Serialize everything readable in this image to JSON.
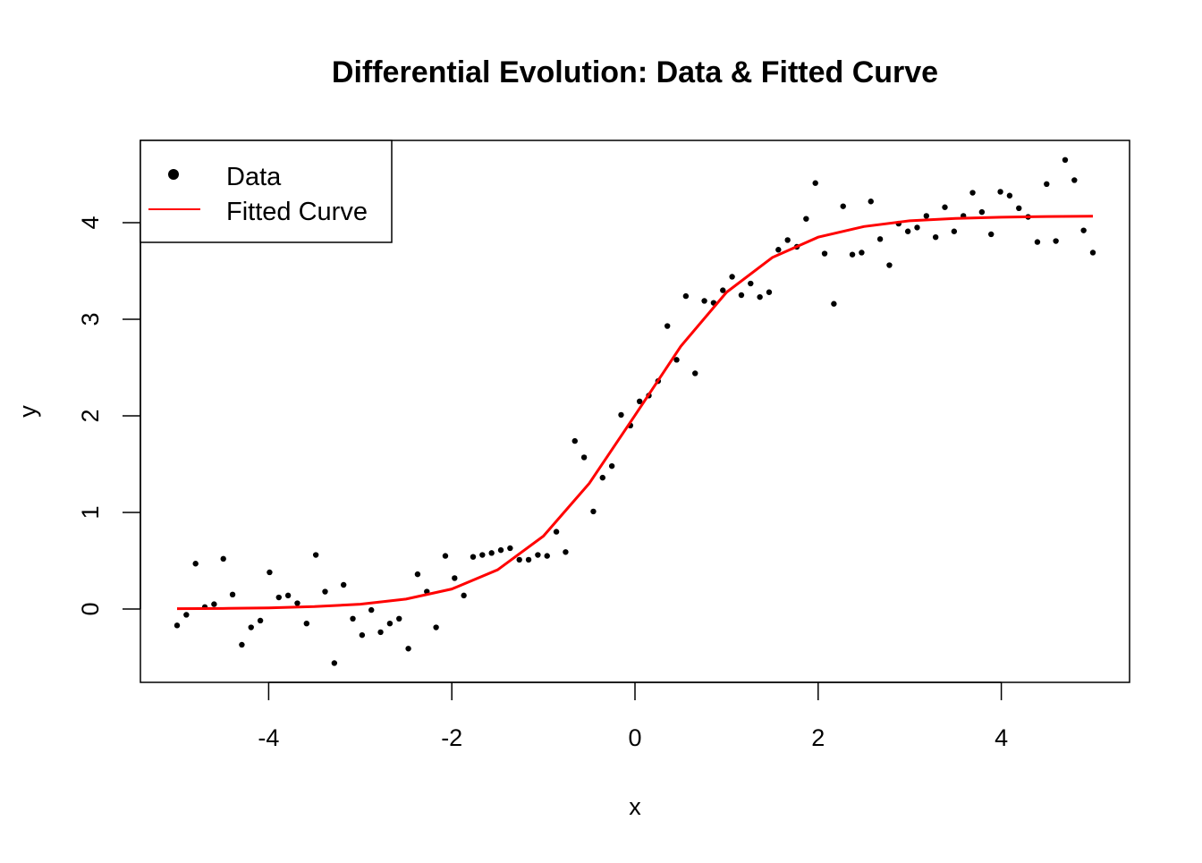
{
  "chart_data": {
    "type": "scatter",
    "title": "Differential Evolution: Data & Fitted Curve",
    "xlabel": "x",
    "ylabel": "y",
    "xlim": [
      -5.4,
      5.4
    ],
    "ylim": [
      -0.75,
      4.85
    ],
    "x_ticks": [
      -4,
      -2,
      0,
      2,
      4
    ],
    "x_tick_labels": [
      "-4",
      "-2",
      "0",
      "2",
      "4"
    ],
    "y_ticks": [
      0,
      1,
      2,
      3,
      4
    ],
    "y_tick_labels": [
      "0",
      "1",
      "2",
      "3",
      "4"
    ],
    "grid": false,
    "legend_position": "top-left",
    "legend": [
      {
        "label": "Data",
        "symbol": "point",
        "color": "#000000"
      },
      {
        "label": "Fitted Curve",
        "symbol": "line",
        "color": "#ff0000"
      }
    ],
    "series": [
      {
        "name": "Data",
        "type": "scatter",
        "color": "#000000",
        "x_range": [
          -5,
          5
        ],
        "y": [
          -0.17,
          -0.06,
          0.47,
          0.02,
          0.05,
          0.52,
          0.15,
          -0.37,
          -0.19,
          -0.12,
          0.38,
          0.12,
          0.14,
          0.06,
          -0.15,
          0.56,
          0.18,
          -0.56,
          0.25,
          -0.1,
          -0.27,
          -0.01,
          -0.24,
          -0.15,
          -0.1,
          -0.41,
          0.36,
          0.18,
          -0.19,
          0.55,
          0.32,
          0.14,
          0.54,
          0.56,
          0.58,
          0.61,
          0.63,
          0.51,
          0.51,
          0.56,
          0.55,
          0.8,
          0.59,
          1.74,
          1.57,
          1.01,
          1.36,
          1.48,
          2.01,
          1.9,
          2.15,
          2.21,
          2.36,
          2.93,
          2.58,
          3.24,
          2.44,
          3.19,
          3.17,
          3.3,
          3.44,
          3.25,
          3.37,
          3.23,
          3.28,
          3.72,
          3.82,
          3.75,
          4.04,
          4.41,
          3.68,
          3.16,
          4.17,
          3.67,
          3.69,
          4.22,
          3.83,
          3.56,
          3.99,
          3.91,
          3.95,
          4.07,
          3.85,
          4.16,
          3.91,
          4.07,
          4.31,
          4.11,
          3.88,
          4.32,
          4.28,
          4.15,
          4.06,
          3.8,
          4.4,
          3.81,
          4.65,
          4.44,
          3.92,
          3.69
        ]
      },
      {
        "name": "Fitted Curve",
        "type": "line",
        "color": "#ff0000",
        "x": [
          -5,
          -4.5,
          -4,
          -3.5,
          -3,
          -2.5,
          -2,
          -1.5,
          -1,
          -0.5,
          0,
          0.5,
          1,
          1.5,
          2,
          2.5,
          3,
          3.5,
          4,
          4.5,
          5
        ],
        "y": [
          0.003,
          0.006,
          0.012,
          0.025,
          0.05,
          0.103,
          0.207,
          0.406,
          0.755,
          1.3,
          2.005,
          2.72,
          3.28,
          3.64,
          3.85,
          3.96,
          4.02,
          4.044,
          4.057,
          4.064,
          4.067
        ]
      }
    ]
  }
}
